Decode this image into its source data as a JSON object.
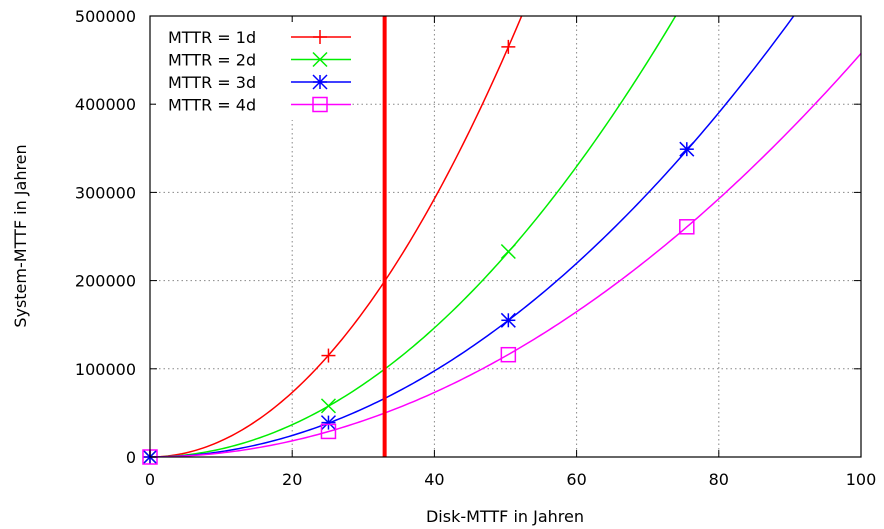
{
  "chart_data": {
    "type": "line",
    "title": "",
    "xlabel": "Disk-MTTF in Jahren",
    "ylabel": "System-MTTF in Jahren",
    "xlim": [
      0,
      100
    ],
    "ylim": [
      0,
      500000
    ],
    "x_ticks": [
      0,
      20,
      40,
      60,
      80,
      100
    ],
    "y_ticks": [
      0,
      100000,
      200000,
      300000,
      400000,
      500000
    ],
    "grid": true,
    "legend_position": "top-left",
    "vertical_marker": {
      "x": 33,
      "color": "#ff0000"
    },
    "series": [
      {
        "name": "MTTR = 1d",
        "color": "#ff0000",
        "marker": "plus",
        "curve_coefficient": 183,
        "points": [
          {
            "x": 0,
            "y": 0
          },
          {
            "x": 25.1,
            "y": 115000
          },
          {
            "x": 50.4,
            "y": 465000
          }
        ]
      },
      {
        "name": "MTTR = 2d",
        "color": "#00ee00",
        "marker": "cross",
        "curve_coefficient": 91.5,
        "points": [
          {
            "x": 0,
            "y": 0
          },
          {
            "x": 25.1,
            "y": 58000
          },
          {
            "x": 50.4,
            "y": 233000
          }
        ]
      },
      {
        "name": "MTTR = 3d",
        "color": "#0000ff",
        "marker": "star",
        "curve_coefficient": 61,
        "points": [
          {
            "x": 0,
            "y": 0
          },
          {
            "x": 25.1,
            "y": 39000
          },
          {
            "x": 50.4,
            "y": 155000
          },
          {
            "x": 75.5,
            "y": 349000
          }
        ]
      },
      {
        "name": "MTTR = 4d",
        "color": "#ff00ff",
        "marker": "square",
        "curve_coefficient": 45.75,
        "points": [
          {
            "x": 0,
            "y": 0
          },
          {
            "x": 25.1,
            "y": 29000
          },
          {
            "x": 50.4,
            "y": 116000
          },
          {
            "x": 75.5,
            "y": 261000
          }
        ]
      }
    ]
  }
}
